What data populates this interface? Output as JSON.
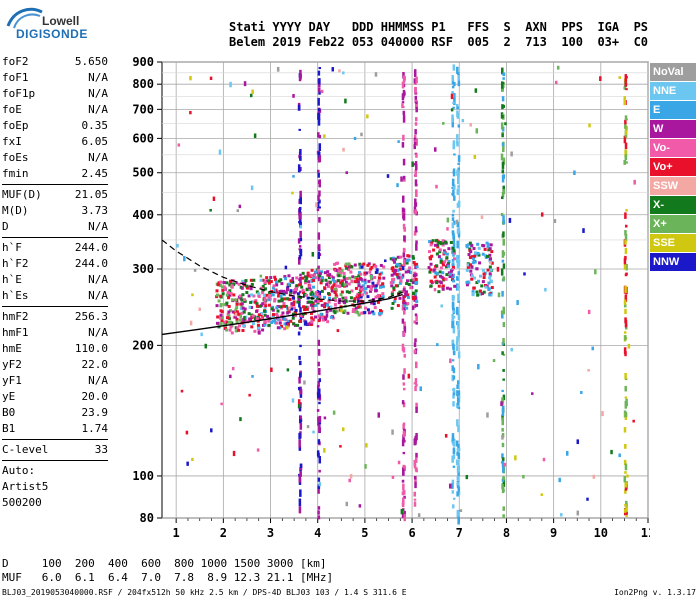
{
  "logo": {
    "line1": "Lowell",
    "line2": "DIGISONDE"
  },
  "header": {
    "line1": "Stati YYYY DAY   DDD HHMMSS P1   FFS  S  AXN  PPS  IGA  PS",
    "line2": "Belem 2019 Feb22 053 040000 RSF  005  2  713  100  03+  C0"
  },
  "params": {
    "group1": [
      {
        "k": "foF2",
        "v": "5.650"
      },
      {
        "k": "foF1",
        "v": "N/A"
      },
      {
        "k": "foF1p",
        "v": "N/A"
      },
      {
        "k": "foE",
        "v": "N/A"
      },
      {
        "k": "foEp",
        "v": "0.35"
      },
      {
        "k": "fxI",
        "v": "6.05"
      },
      {
        "k": "foEs",
        "v": "N/A"
      },
      {
        "k": "fmin",
        "v": "2.45"
      }
    ],
    "group2": [
      {
        "k": "MUF(D)",
        "v": "21.05"
      },
      {
        "k": "M(D)",
        "v": "3.73"
      },
      {
        "k": "D",
        "v": "N/A"
      }
    ],
    "group3": [
      {
        "k": "h`F",
        "v": "244.0"
      },
      {
        "k": "h`F2",
        "v": "244.0"
      },
      {
        "k": "h`E",
        "v": "N/A"
      },
      {
        "k": "h`Es",
        "v": "N/A"
      }
    ],
    "group4": [
      {
        "k": "hmF2",
        "v": "256.3"
      },
      {
        "k": "hmF1",
        "v": "N/A"
      },
      {
        "k": "hmE",
        "v": "110.0"
      },
      {
        "k": "yF2",
        "v": "22.0"
      },
      {
        "k": "yF1",
        "v": "N/A"
      },
      {
        "k": "yE",
        "v": "20.0"
      },
      {
        "k": "B0",
        "v": "23.9"
      },
      {
        "k": "B1",
        "v": "1.74"
      }
    ],
    "group5": [
      {
        "k": "C-level",
        "v": "33"
      }
    ],
    "auto": [
      "Auto:",
      "Artist5",
      "500200"
    ]
  },
  "legend": [
    {
      "label": "NoVal",
      "color": "#9e9e9e"
    },
    {
      "label": "NNE",
      "color": "#6cc7f0"
    },
    {
      "label": "E",
      "color": "#3aa6e6"
    },
    {
      "label": "W",
      "color": "#a8179e"
    },
    {
      "label": "Vo-",
      "color": "#f05aa8"
    },
    {
      "label": "Vo+",
      "color": "#e8102a"
    },
    {
      "label": "SSW",
      "color": "#f4a8a4"
    },
    {
      "label": "X-",
      "color": "#127a1c"
    },
    {
      "label": "X+",
      "color": "#6cb45a"
    },
    {
      "label": "SSE",
      "color": "#d0c810"
    },
    {
      "label": "NNW",
      "color": "#1a18c8"
    }
  ],
  "chart_data": {
    "type": "scatter",
    "title": "",
    "xlabel": "",
    "ylabel": "",
    "xlim": [
      0.7,
      11
    ],
    "ylim": [
      80,
      900
    ],
    "y_scale": "log",
    "grid": true,
    "x_ticks": [
      "1",
      "2",
      "3",
      "4",
      "5",
      "6",
      "7",
      "8",
      "9",
      "10",
      "11"
    ],
    "y_ticks": [
      "80",
      "100",
      "200",
      "300",
      "400",
      "500",
      "600",
      "700",
      "800",
      "900"
    ],
    "profile_curve": {
      "x": [
        0.7,
        1.5,
        2.5,
        3.5,
        4.5,
        5.5,
        5.8
      ],
      "y": [
        212,
        218,
        226,
        235,
        245,
        256,
        262
      ]
    },
    "dashed_curve": {
      "x": [
        0.7,
        1.0,
        1.5,
        2.0,
        2.5,
        3.0,
        3.5,
        4.0,
        4.5,
        5.0,
        5.5,
        5.8
      ],
      "y": [
        350,
        330,
        305,
        287,
        275,
        266,
        260,
        256,
        253,
        253,
        258,
        265
      ]
    },
    "trace_clusters": [
      {
        "x": 2.1,
        "y": 250,
        "colors": [
          "#e8102a",
          "#f05aa8",
          "#a8179e",
          "#127a1c",
          "#6cb45a"
        ]
      },
      {
        "x": 2.6,
        "y": 250,
        "colors": [
          "#e8102a",
          "#a8179e",
          "#6cc7f0",
          "#f05aa8",
          "#127a1c"
        ]
      },
      {
        "x": 3.1,
        "y": 255,
        "colors": [
          "#e8102a",
          "#a8179e",
          "#f05aa8",
          "#127a1c",
          "#3aa6e6"
        ]
      },
      {
        "x": 3.6,
        "y": 260,
        "colors": [
          "#e8102a",
          "#a8179e",
          "#1a18c8",
          "#f05aa8",
          "#127a1c"
        ]
      },
      {
        "x": 4.1,
        "y": 265,
        "colors": [
          "#e8102a",
          "#a8179e",
          "#f05aa8",
          "#3aa6e6",
          "#127a1c"
        ]
      },
      {
        "x": 4.6,
        "y": 275,
        "colors": [
          "#e8102a",
          "#a8179e",
          "#f05aa8",
          "#127a1c",
          "#6cb45a"
        ]
      },
      {
        "x": 5.1,
        "y": 275,
        "colors": [
          "#e8102a",
          "#a8179e",
          "#1a18c8",
          "#f05aa8",
          "#3aa6e6"
        ]
      },
      {
        "x": 5.8,
        "y": 285,
        "colors": [
          "#e8102a",
          "#a8179e",
          "#f05aa8",
          "#127a1c",
          "#3aa6e6"
        ]
      },
      {
        "x": 6.6,
        "y": 310,
        "colors": [
          "#e8102a",
          "#a8179e",
          "#3aa6e6",
          "#f05aa8",
          "#127a1c"
        ]
      },
      {
        "x": 7.4,
        "y": 305,
        "colors": [
          "#3aa6e6",
          "#6cc7f0",
          "#127a1c",
          "#a8179e",
          "#e8102a"
        ]
      }
    ],
    "vertical_streaks": [
      {
        "x": 3.6,
        "colors": [
          "#1a18c8",
          "#a8179e"
        ]
      },
      {
        "x": 4.0,
        "colors": [
          "#a8179e",
          "#1a18c8"
        ]
      },
      {
        "x": 5.8,
        "colors": [
          "#a8179e",
          "#f05aa8"
        ]
      },
      {
        "x": 6.05,
        "colors": [
          "#a8179e",
          "#f05aa8"
        ]
      },
      {
        "x": 6.85,
        "colors": [
          "#3aa6e6",
          "#6cc7f0"
        ]
      },
      {
        "x": 6.95,
        "colors": [
          "#3aa6e6",
          "#6cc7f0"
        ]
      },
      {
        "x": 7.9,
        "colors": [
          "#127a1c",
          "#3aa6e6",
          "#6cb45a"
        ]
      },
      {
        "x": 10.5,
        "colors": [
          "#e8102a",
          "#d0c810",
          "#6cb45a"
        ]
      }
    ]
  },
  "bottom": {
    "row1": "D     100  200  400  600  800 1000 1500 3000 [km]",
    "row2": "MUF   6.0  6.1  6.4  7.0  7.8  8.9 12.3 21.1 [MHz]"
  },
  "footer": "BLJ03_2019053040000.RSF / 204fx512h 50 kHz 2.5 km / DPS-4D BLJ03 103 / 1.4 S 311.6 E",
  "version": "Ion2Png v. 1.3.17"
}
